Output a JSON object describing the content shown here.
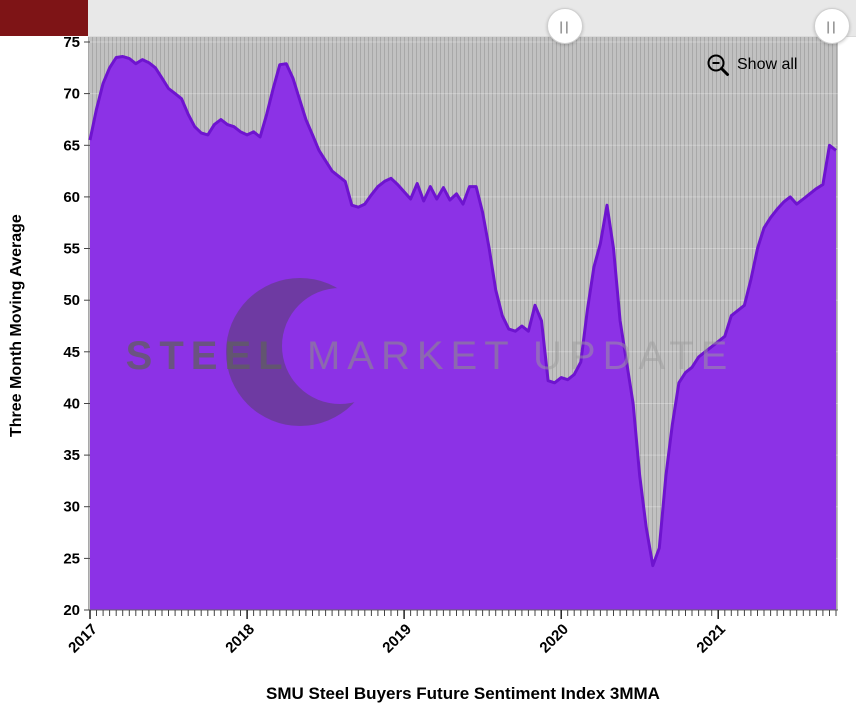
{
  "top_bar": {
    "left_block_color": "#7e1416",
    "scrollbar_color": "#e8e8e8",
    "handle_glyph": "||"
  },
  "controls": {
    "show_all_label": "Show all"
  },
  "watermark": {
    "words": [
      "STEEL",
      "MARKET",
      "UPDATE"
    ]
  },
  "chart_data": {
    "type": "area",
    "title": "SMU Steel Buyers Future Sentiment Index 3MMA",
    "xlabel": "",
    "ylabel": "Three Month Moving Average",
    "ylim": [
      20,
      75
    ],
    "y_ticks": [
      75,
      70,
      65,
      60,
      55,
      50,
      45,
      40,
      35,
      30,
      25,
      20
    ],
    "x_year_labels": [
      "2017",
      "2018",
      "2019",
      "2020",
      "2021"
    ],
    "x_start": 2017,
    "x_step": 0.0416667,
    "x_minor_ticks": "every-point",
    "grid": "vertical-stripes",
    "legend": "none",
    "colors": {
      "area_fill": "#8c32e6",
      "line": "#6e14cf",
      "plot_bg": "#c1c1c1",
      "plot_stripe": "#a8a8a8"
    },
    "series": [
      {
        "values": [
          65.5,
          68.5,
          71,
          72.5,
          73.5,
          73.6,
          73.4,
          72.9,
          73.3,
          73,
          72.5,
          71.5,
          70.5,
          70,
          69.5,
          68,
          66.8,
          66.2,
          66,
          67,
          67.5,
          67,
          66.8,
          66.3,
          66,
          66.3,
          65.8,
          68,
          70.5,
          72.8,
          72.9,
          71.5,
          69.5,
          67.5,
          66,
          64.5,
          63.5,
          62.5,
          62,
          61.5,
          59.2,
          59,
          59.3,
          60.2,
          61,
          61.5,
          61.8,
          61.2,
          60.5,
          59.8,
          61.3,
          59.6,
          61,
          59.8,
          60.9,
          59.7,
          60.3,
          59.3,
          61,
          61,
          58.5,
          55,
          51,
          48.5,
          47.2,
          47,
          47.5,
          47,
          49.5,
          48,
          42.2,
          42,
          42.5,
          42.3,
          42.8,
          44,
          49,
          53.2,
          55.5,
          59.2,
          55,
          48,
          44,
          40,
          33,
          28,
          24.3,
          26,
          33,
          38,
          42,
          43,
          43.5,
          44.5,
          45,
          45.5,
          46,
          46.5,
          48.5,
          49,
          49.5,
          52,
          55,
          57,
          58,
          58.8,
          59.5,
          60,
          59.3,
          59.8,
          60.3,
          60.8,
          61.2,
          65,
          64.5
        ]
      }
    ]
  }
}
